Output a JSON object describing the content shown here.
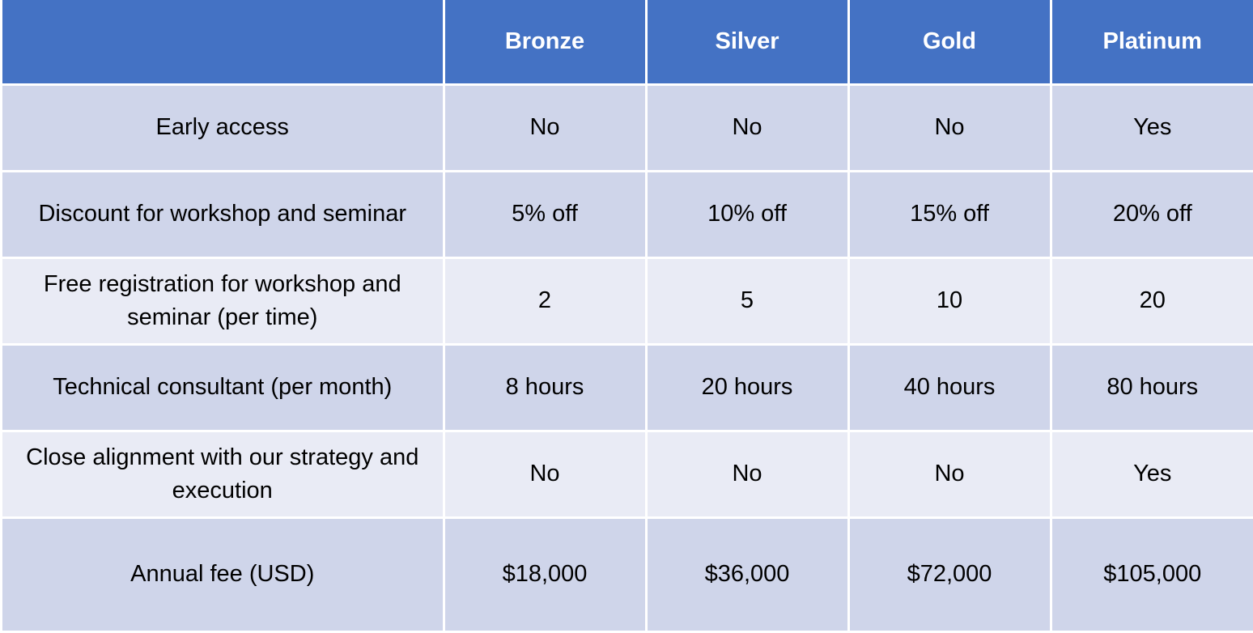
{
  "table": {
    "header": {
      "corner": "",
      "tiers": [
        "Bronze",
        "Silver",
        "Gold",
        "Platinum"
      ]
    },
    "rows": [
      {
        "feature": "Early access",
        "values": [
          "No",
          "No",
          "No",
          "Yes"
        ]
      },
      {
        "feature": "Discount for workshop and seminar",
        "values": [
          "5% off",
          "10% off",
          "15% off",
          "20% off"
        ]
      },
      {
        "feature": "Free registration for workshop and seminar (per time)",
        "values": [
          "2",
          "5",
          "10",
          "20"
        ]
      },
      {
        "feature": "Technical consultant (per month)",
        "values": [
          "8 hours",
          "20 hours",
          "40 hours",
          "80 hours"
        ]
      },
      {
        "feature": "Close alignment with our strategy and execution",
        "values": [
          "No",
          "No",
          "No",
          "Yes"
        ]
      },
      {
        "feature": "Annual fee (USD)",
        "values": [
          "$18,000",
          "$36,000",
          "$72,000",
          "$105,000"
        ]
      }
    ]
  },
  "colors": {
    "header_bg": "#4472c4",
    "row_dark": "#cfd5ea",
    "row_light": "#e9ebf5",
    "border": "#ffffff"
  }
}
